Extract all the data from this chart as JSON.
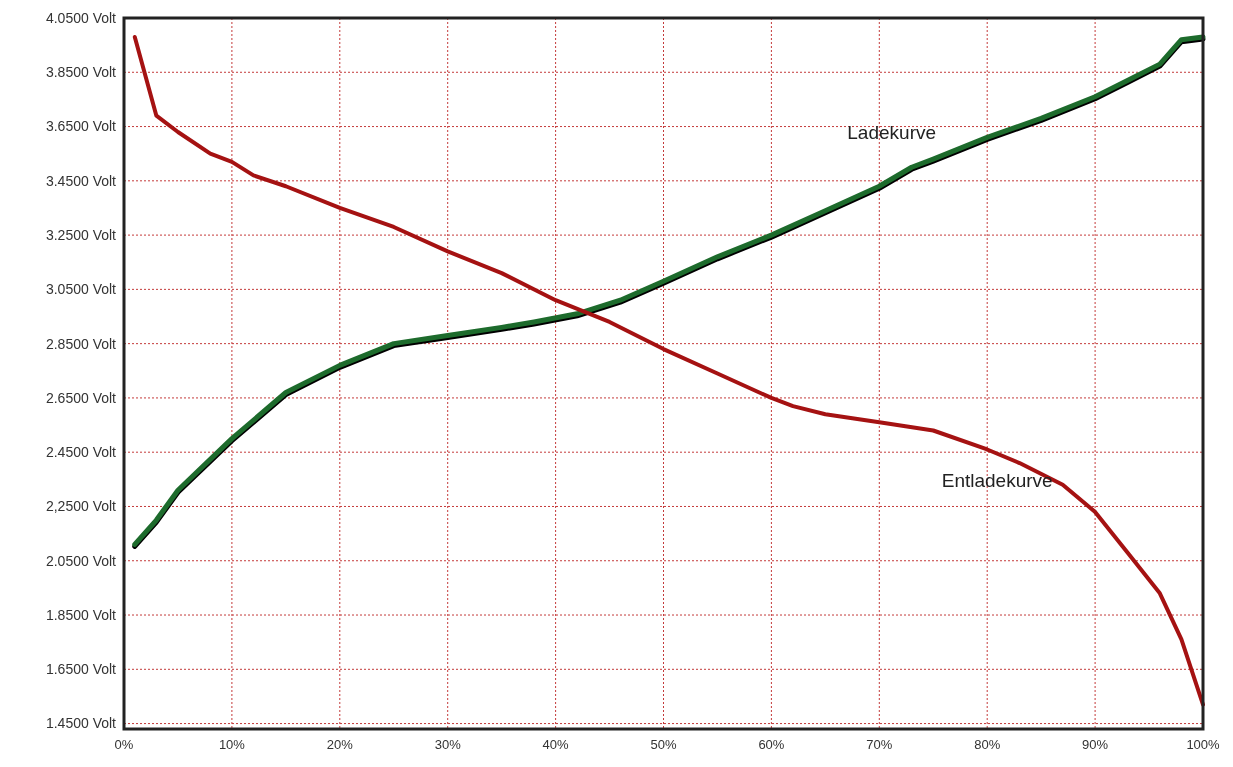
{
  "chart_data": {
    "type": "line",
    "xlim": [
      0,
      100
    ],
    "xticks": [
      {
        "value": 0,
        "label": "0%"
      },
      {
        "value": 10,
        "label": "10%"
      },
      {
        "value": 20,
        "label": "20%"
      },
      {
        "value": 30,
        "label": "30%"
      },
      {
        "value": 40,
        "label": "40%"
      },
      {
        "value": 50,
        "label": "50%"
      },
      {
        "value": 60,
        "label": "60%"
      },
      {
        "value": 70,
        "label": "70%"
      },
      {
        "value": 80,
        "label": "80%"
      },
      {
        "value": 90,
        "label": "90%"
      },
      {
        "value": 100,
        "label": "100%"
      }
    ],
    "ylim": [
      1.43,
      4.05
    ],
    "yticks": [
      {
        "value": 1.45,
        "label": "1.4500 Volt"
      },
      {
        "value": 1.65,
        "label": "1.6500 Volt"
      },
      {
        "value": 1.85,
        "label": "1.8500 Volt"
      },
      {
        "value": 2.05,
        "label": "2.0500 Volt"
      },
      {
        "value": 2.25,
        "label": "2,2500 Volt"
      },
      {
        "value": 2.45,
        "label": "2.4500 Volt"
      },
      {
        "value": 2.65,
        "label": "2.6500 Volt"
      },
      {
        "value": 2.85,
        "label": "2.8500 Volt"
      },
      {
        "value": 3.05,
        "label": "3.0500 Volt"
      },
      {
        "value": 3.25,
        "label": "3.2500 Volt"
      },
      {
        "value": 3.45,
        "label": "3.4500 Volt"
      },
      {
        "value": 3.65,
        "label": "3.6500 Volt"
      },
      {
        "value": 3.85,
        "label": "3.8500 Volt"
      },
      {
        "value": 4.05,
        "label": "4.0500 Volt"
      }
    ],
    "grid": true,
    "line_style": "solid",
    "marker": "none",
    "series": [
      {
        "name": "Ladekurve",
        "color": "#1d6b2c",
        "x": [
          1,
          3,
          5,
          10,
          15,
          20,
          25,
          30,
          35,
          38,
          42,
          46,
          50,
          55,
          60,
          65,
          70,
          73,
          75,
          80,
          85,
          90,
          93,
          96,
          98,
          100
        ],
        "values": [
          2.11,
          2.2,
          2.31,
          2.5,
          2.67,
          2.77,
          2.85,
          2.88,
          2.91,
          2.93,
          2.96,
          3.01,
          3.08,
          3.17,
          3.25,
          3.34,
          3.43,
          3.5,
          3.53,
          3.61,
          3.68,
          3.76,
          3.82,
          3.88,
          3.97,
          3.98
        ]
      },
      {
        "name": "Entladekurve",
        "color": "#a51212",
        "x": [
          1,
          3,
          5,
          8,
          10,
          12,
          15,
          20,
          25,
          30,
          35,
          40,
          45,
          50,
          55,
          60,
          62,
          65,
          70,
          75,
          80,
          83,
          87,
          90,
          93,
          96,
          98,
          100
        ],
        "values": [
          3.98,
          3.69,
          3.63,
          3.55,
          3.52,
          3.47,
          3.43,
          3.35,
          3.28,
          3.19,
          3.11,
          3.01,
          2.93,
          2.83,
          2.74,
          2.65,
          2.62,
          2.59,
          2.56,
          2.53,
          2.46,
          2.41,
          2.33,
          2.23,
          2.08,
          1.93,
          1.76,
          1.52
        ]
      }
    ]
  }
}
